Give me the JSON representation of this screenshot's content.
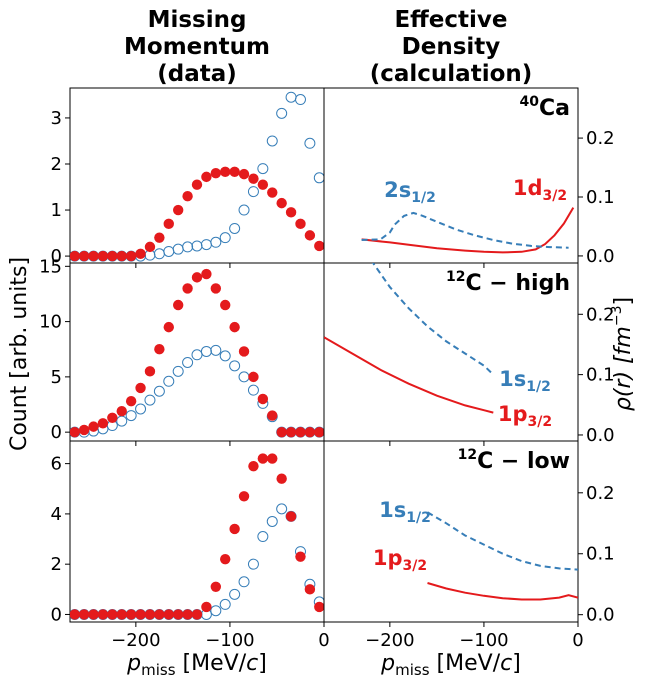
{
  "titles": {
    "left": [
      "Missing",
      "Momentum",
      "(data)"
    ],
    "right": [
      "Effective",
      "Density",
      "(calculation)"
    ]
  },
  "labels": {
    "left_ylabel": "Count [arb. units]",
    "right_ylabel_main": "ρ(r) [fm",
    "right_ylabel_exp": "−3",
    "right_ylabel_close": "]",
    "xlabel_main": "p",
    "xlabel_sub": "miss",
    "xlabel_units": " [MeV/",
    "xlabel_c": "c",
    "xlabel_close": "]"
  },
  "colors": {
    "red": "#e41a1c",
    "blue": "#377eb8"
  },
  "chart_data": [
    {
      "type": "scatter",
      "panel": "Missing Momentum (data) — top",
      "xlim": [
        -270,
        0
      ],
      "ylim": [
        -0.15,
        3.65
      ],
      "yticks": [
        "0",
        "1",
        "2",
        "3"
      ],
      "xticks": [
        "−200",
        "−100",
        "0"
      ],
      "series": [
        {
          "marker": "filled",
          "color": "#e41a1c",
          "x": [
            -265,
            -255,
            -245,
            -235,
            -225,
            -215,
            -205,
            -195,
            -185,
            -175,
            -165,
            -155,
            -145,
            -135,
            -125,
            -115,
            -105,
            -95,
            -85,
            -75,
            -65,
            -55,
            -45,
            -35,
            -25,
            -15,
            -5
          ],
          "y": [
            0,
            0,
            0,
            0,
            0,
            0,
            0,
            0.05,
            0.2,
            0.4,
            0.7,
            1.0,
            1.3,
            1.55,
            1.72,
            1.8,
            1.83,
            1.83,
            1.78,
            1.68,
            1.55,
            1.38,
            1.15,
            0.95,
            0.7,
            0.45,
            0.22
          ]
        },
        {
          "marker": "open",
          "color": "#377eb8",
          "x": [
            -265,
            -255,
            -245,
            -235,
            -225,
            -215,
            -205,
            -195,
            -185,
            -175,
            -165,
            -155,
            -145,
            -135,
            -125,
            -115,
            -105,
            -95,
            -85,
            -75,
            -65,
            -55,
            -45,
            -35,
            -25,
            -15,
            -5
          ],
          "y": [
            0,
            0,
            0,
            0,
            0,
            0,
            0,
            0,
            0.02,
            0.05,
            0.1,
            0.15,
            0.2,
            0.22,
            0.25,
            0.3,
            0.4,
            0.6,
            1.0,
            1.4,
            1.9,
            2.5,
            3.1,
            3.45,
            3.4,
            2.45,
            1.7
          ]
        }
      ]
    },
    {
      "type": "scatter",
      "panel": "Missing Momentum (data) — middle",
      "xlim": [
        -270,
        0
      ],
      "ylim": [
        -0.8,
        15.3
      ],
      "yticks": [
        "0",
        "5",
        "10",
        "15"
      ],
      "xticks": [
        "−200",
        "−100",
        "0"
      ],
      "series": [
        {
          "marker": "filled",
          "color": "#e41a1c",
          "x": [
            -265,
            -255,
            -245,
            -235,
            -225,
            -215,
            -205,
            -195,
            -185,
            -175,
            -165,
            -155,
            -145,
            -135,
            -125,
            -115,
            -105,
            -95,
            -85,
            -75,
            -65,
            -55,
            -45,
            -35,
            -25,
            -15,
            -5
          ],
          "y": [
            0,
            0.2,
            0.5,
            0.8,
            1.3,
            1.9,
            2.8,
            4.0,
            5.5,
            7.5,
            9.5,
            11.5,
            13.0,
            14.0,
            14.3,
            13.0,
            11.5,
            9.5,
            7.3,
            5.0,
            3.0,
            1.5,
            0,
            0,
            0,
            0,
            0
          ]
        },
        {
          "marker": "open",
          "color": "#377eb8",
          "x": [
            -265,
            -255,
            -245,
            -235,
            -225,
            -215,
            -205,
            -195,
            -185,
            -175,
            -165,
            -155,
            -145,
            -135,
            -125,
            -115,
            -105,
            -95,
            -85,
            -75,
            -65,
            -55,
            -45,
            -35,
            -25,
            -15,
            -5
          ],
          "y": [
            0,
            0,
            0.1,
            0.3,
            0.6,
            1.0,
            1.5,
            2.1,
            2.9,
            3.7,
            4.6,
            5.5,
            6.3,
            7.0,
            7.3,
            7.4,
            6.9,
            6.0,
            5.0,
            3.8,
            2.6,
            1.4,
            0,
            0,
            0,
            0,
            0
          ]
        }
      ]
    },
    {
      "type": "scatter",
      "panel": "Missing Momentum (data) — bottom",
      "xlim": [
        -270,
        0
      ],
      "ylim": [
        -0.3,
        6.9
      ],
      "yticks": [
        "0",
        "2",
        "4",
        "6"
      ],
      "xticks": [
        "−200",
        "−100",
        "0"
      ],
      "series": [
        {
          "marker": "filled",
          "color": "#e41a1c",
          "x": [
            -265,
            -255,
            -245,
            -235,
            -225,
            -215,
            -205,
            -195,
            -185,
            -175,
            -165,
            -155,
            -145,
            -135,
            -125,
            -115,
            -105,
            -95,
            -85,
            -75,
            -65,
            -55,
            -45,
            -35,
            -25,
            -15,
            -5
          ],
          "y": [
            0,
            0,
            0,
            0,
            0,
            0,
            0,
            0,
            0,
            0,
            0,
            0,
            0,
            0,
            0.3,
            1.1,
            2.2,
            3.4,
            4.7,
            5.9,
            6.2,
            6.2,
            5.4,
            3.9,
            2.3,
            1.0,
            0.3
          ]
        },
        {
          "marker": "open",
          "color": "#377eb8",
          "x": [
            -265,
            -255,
            -245,
            -235,
            -225,
            -215,
            -205,
            -195,
            -185,
            -175,
            -165,
            -155,
            -145,
            -135,
            -125,
            -115,
            -105,
            -95,
            -85,
            -75,
            -65,
            -55,
            -45,
            -35,
            -25,
            -15,
            -5
          ],
          "y": [
            0,
            0,
            0,
            0,
            0,
            0,
            0,
            0,
            0,
            0,
            0,
            0,
            0,
            0,
            0,
            0.15,
            0.4,
            0.8,
            1.3,
            2.0,
            3.1,
            3.7,
            4.2,
            3.9,
            2.5,
            1.2,
            0.5
          ]
        }
      ]
    },
    {
      "type": "line",
      "panel": "Effective Density — top",
      "annotation": {
        "super": "40",
        "main": "Ca"
      },
      "xlim": [
        -270,
        0
      ],
      "ylim": [
        -0.012,
        0.285
      ],
      "yticks": [
        "0.0",
        "0.1",
        "0.2"
      ],
      "xticks": [
        "−200",
        "−100",
        "0"
      ],
      "series": [
        {
          "label_main": "1d",
          "label_sub": "3/2",
          "color": "#e41a1c",
          "dash": "solid",
          "x": [
            -230,
            -200,
            -180,
            -150,
            -120,
            -100,
            -80,
            -60,
            -45,
            -35,
            -25,
            -15,
            -5
          ],
          "y": [
            0.028,
            0.023,
            0.019,
            0.013,
            0.009,
            0.007,
            0.006,
            0.007,
            0.011,
            0.02,
            0.035,
            0.055,
            0.082
          ]
        },
        {
          "label_main": "2s",
          "label_sub": "1/2",
          "color": "#377eb8",
          "dash": "dashed",
          "x": [
            -230,
            -210,
            -200,
            -195,
            -185,
            -175,
            -165,
            -150,
            -130,
            -110,
            -90,
            -70,
            -50,
            -30,
            -10
          ],
          "y": [
            0.027,
            0.028,
            0.04,
            0.053,
            0.068,
            0.073,
            0.068,
            0.058,
            0.045,
            0.035,
            0.027,
            0.021,
            0.017,
            0.015,
            0.014
          ]
        }
      ]
    },
    {
      "type": "line",
      "panel": "Effective Density — middle",
      "annotation": {
        "super": "12",
        "main": "C − high"
      },
      "xlim": [
        -270,
        0
      ],
      "ylim": [
        -0.01,
        0.285
      ],
      "yticks": [
        "0.0",
        "0.1",
        "0.2"
      ],
      "xticks": [
        "−200",
        "−100",
        "0"
      ],
      "series": [
        {
          "label_main": "1p",
          "label_sub": "3/2",
          "color": "#e41a1c",
          "dash": "solid",
          "x": [
            -270,
            -240,
            -210,
            -180,
            -150,
            -120,
            -100,
            -90
          ],
          "y": [
            0.162,
            0.135,
            0.108,
            0.085,
            0.065,
            0.049,
            0.041,
            0.037
          ]
        },
        {
          "label_main": "1s",
          "label_sub": "1/2",
          "color": "#377eb8",
          "dash": "dashed",
          "x": [
            -220,
            -200,
            -180,
            -160,
            -140,
            -120,
            -100,
            -90
          ],
          "y": [
            0.29,
            0.245,
            0.21,
            0.18,
            0.155,
            0.135,
            0.115,
            0.1
          ]
        }
      ]
    },
    {
      "type": "line",
      "panel": "Effective Density — bottom",
      "annotation": {
        "super": "12",
        "main": "C − low"
      },
      "xlim": [
        -270,
        0
      ],
      "ylim": [
        -0.012,
        0.285
      ],
      "yticks": [
        "0.0",
        "0.1",
        "0.2"
      ],
      "xticks": [
        "−200",
        "−100",
        "0"
      ],
      "series": [
        {
          "label_main": "1p",
          "label_sub": "3/2",
          "color": "#e41a1c",
          "dash": "solid",
          "x": [
            -160,
            -140,
            -120,
            -100,
            -80,
            -60,
            -40,
            -20,
            -10,
            0
          ],
          "y": [
            0.052,
            0.043,
            0.036,
            0.031,
            0.027,
            0.025,
            0.025,
            0.028,
            0.032,
            0.028
          ]
        },
        {
          "label_main": "1s",
          "label_sub": "1/2",
          "color": "#377eb8",
          "dash": "dashed",
          "x": [
            -160,
            -140,
            -120,
            -100,
            -80,
            -60,
            -40,
            -20,
            0
          ],
          "y": [
            0.168,
            0.15,
            0.13,
            0.115,
            0.1,
            0.088,
            0.08,
            0.076,
            0.074
          ]
        }
      ]
    }
  ]
}
